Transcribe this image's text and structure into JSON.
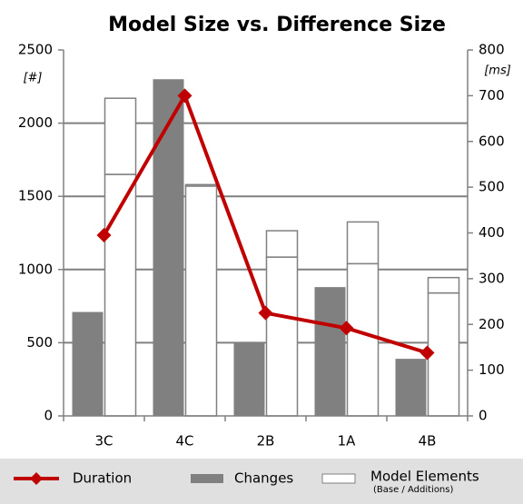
{
  "chart_data": {
    "type": "bar",
    "title": "Model Size vs. Difference Size",
    "y_label": "[#]",
    "y2_label": "[ms]",
    "categories": [
      "3C",
      "4C",
      "2B",
      "1A",
      "4B"
    ],
    "ylim": [
      0,
      2500
    ],
    "yticks": [
      0,
      500,
      1000,
      1500,
      2000,
      2500
    ],
    "y2lim": [
      0,
      800
    ],
    "y2ticks": [
      0,
      100,
      200,
      300,
      400,
      500,
      600,
      700,
      800
    ],
    "grid": true,
    "changes": {
      "name": "Changes",
      "color": "#808080",
      "values": [
        710,
        2300,
        500,
        880,
        390
      ]
    },
    "model_elements": {
      "name": "Model Elements",
      "legend_note": "(Base / Additions)",
      "color": "#ffffff",
      "base": [
        1650,
        1570,
        1085,
        1040,
        840
      ],
      "additions": [
        520,
        10,
        180,
        285,
        105
      ]
    },
    "duration": {
      "name": "Duration",
      "color": "#c00000",
      "axis": "y2",
      "values": [
        395,
        700,
        225,
        192,
        138
      ]
    }
  }
}
